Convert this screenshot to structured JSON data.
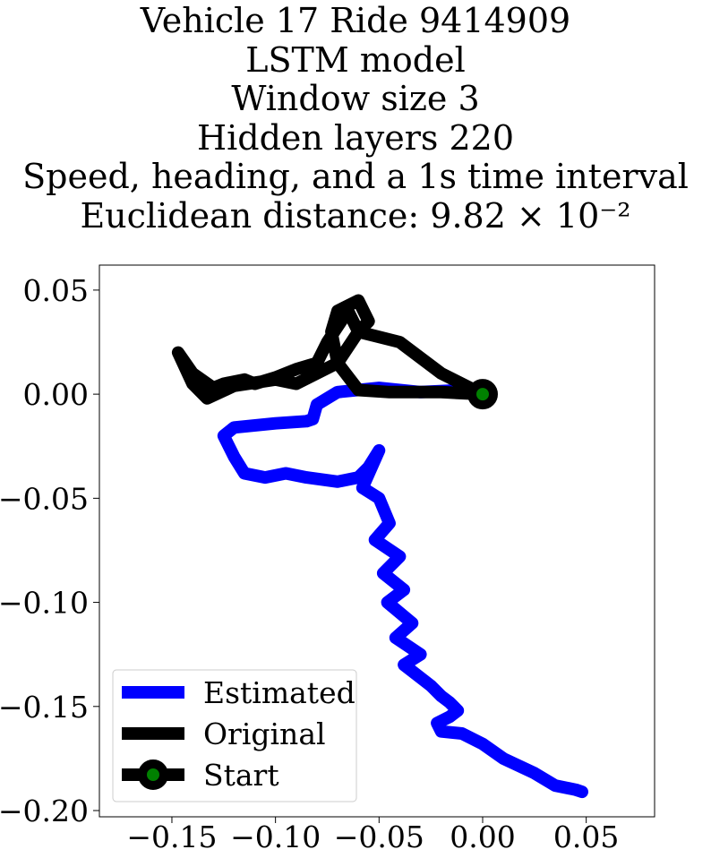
{
  "chart_data": {
    "type": "line",
    "title_lines": [
      "Vehicle 17 Ride 9414909",
      "LSTM model",
      "Window size 3",
      "Hidden layers 220",
      "Speed, heading, and a 1s time interval",
      "Euclidean distance: 9.82 × 10⁻²"
    ],
    "xlabel": "",
    "ylabel": "",
    "xlim": [
      -0.185,
      0.083
    ],
    "ylim": [
      -0.203,
      0.062
    ],
    "xticks": [
      -0.15,
      -0.1,
      -0.05,
      0.0,
      0.05
    ],
    "xtick_labels": [
      "−0.15",
      "−0.10",
      "−0.05",
      "0.00",
      "0.05"
    ],
    "yticks": [
      0.05,
      0.0,
      -0.05,
      -0.1,
      -0.15,
      -0.2
    ],
    "ytick_labels": [
      "0.05",
      "0.00",
      "−0.05",
      "−0.10",
      "−0.15",
      "−0.20"
    ],
    "grid": false,
    "legend_position": "lower-left",
    "series": [
      {
        "name": "Estimated",
        "color": "#0000ff",
        "x": [
          0,
          -0.01,
          -0.03,
          -0.05,
          -0.07,
          -0.08,
          -0.082,
          -0.085,
          -0.1,
          -0.12,
          -0.125,
          -0.12,
          -0.115,
          -0.105,
          -0.095,
          -0.085,
          -0.07,
          -0.06,
          -0.055,
          -0.05,
          -0.058,
          -0.05,
          -0.045,
          -0.052,
          -0.04,
          -0.048,
          -0.038,
          -0.046,
          -0.034,
          -0.042,
          -0.03,
          -0.038,
          -0.025,
          -0.02,
          -0.016,
          -0.012,
          -0.016,
          -0.022,
          -0.02,
          -0.01,
          0,
          0.01,
          0.025,
          0.035,
          0.045,
          0.048
        ],
        "y": [
          0,
          0.002,
          0.001,
          0.003,
          0.001,
          -0.005,
          -0.012,
          -0.013,
          -0.014,
          -0.016,
          -0.02,
          -0.03,
          -0.038,
          -0.04,
          -0.038,
          -0.04,
          -0.042,
          -0.04,
          -0.035,
          -0.027,
          -0.045,
          -0.05,
          -0.062,
          -0.07,
          -0.078,
          -0.086,
          -0.094,
          -0.1,
          -0.11,
          -0.117,
          -0.125,
          -0.13,
          -0.14,
          -0.145,
          -0.148,
          -0.152,
          -0.155,
          -0.158,
          -0.162,
          -0.163,
          -0.168,
          -0.175,
          -0.182,
          -0.188,
          -0.19,
          -0.191
        ]
      },
      {
        "name": "Original",
        "color": "#000000",
        "x": [
          0,
          -0.02,
          -0.045,
          -0.06,
          -0.07,
          -0.073,
          -0.07,
          -0.06,
          -0.055,
          -0.06,
          -0.065,
          -0.075,
          -0.08,
          -0.09,
          -0.1,
          -0.11,
          -0.115,
          -0.125,
          -0.13,
          -0.14,
          -0.147,
          -0.14,
          -0.133,
          -0.12,
          -0.1,
          -0.09,
          -0.07,
          -0.06,
          -0.04,
          -0.02,
          0
        ],
        "y": [
          0,
          0.001,
          0.001,
          0.002,
          0.015,
          0.03,
          0.04,
          0.045,
          0.035,
          0.03,
          0.04,
          0.025,
          0.015,
          0.012,
          0.008,
          0.005,
          0.007,
          0.005,
          0.003,
          0.01,
          0.02,
          0.005,
          -0.002,
          0.004,
          0.007,
          0.005,
          0.015,
          0.03,
          0.025,
          0.01,
          0
        ]
      }
    ],
    "start": {
      "name": "Start",
      "x": 0,
      "y": 0,
      "marker_color": "#008000",
      "edge_color": "#000000"
    }
  }
}
